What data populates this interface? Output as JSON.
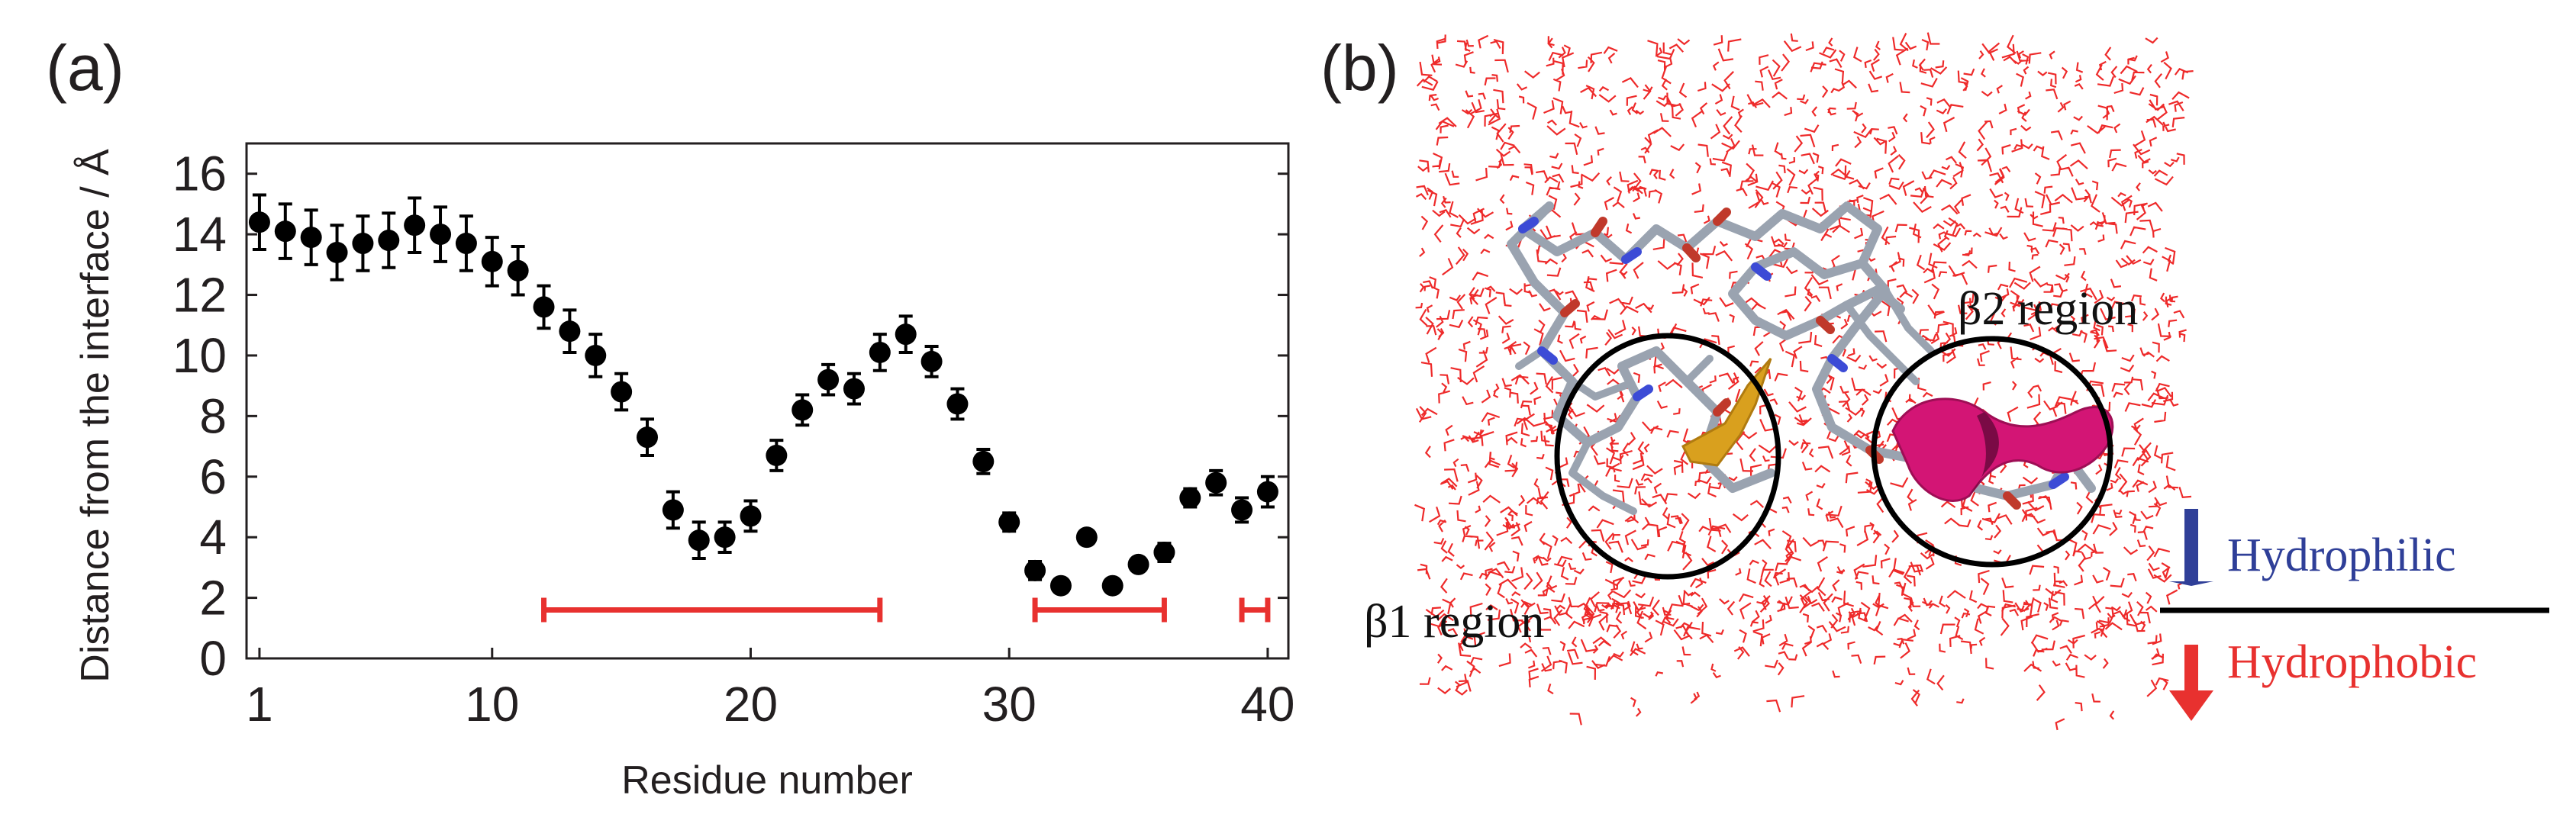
{
  "panel_a": {
    "label": "(a)",
    "chart_data": {
      "type": "scatter",
      "title": "",
      "xlabel": "Residue number",
      "ylabel": "Distance from the interface / Å",
      "xlim": [
        0.5,
        40.8
      ],
      "ylim": [
        0,
        17
      ],
      "x_ticks": [
        1,
        10,
        20,
        30,
        40
      ],
      "y_ticks": [
        0,
        2,
        4,
        6,
        8,
        10,
        12,
        14,
        16
      ],
      "grid": false,
      "series": [
        {
          "name": "Distance",
          "x": [
            1,
            2,
            3,
            4,
            5,
            6,
            7,
            8,
            9,
            10,
            11,
            12,
            13,
            14,
            15,
            16,
            17,
            18,
            19,
            20,
            21,
            22,
            23,
            24,
            25,
            26,
            27,
            28,
            29,
            30,
            31,
            32,
            33,
            34,
            35,
            36,
            37,
            38,
            39,
            40
          ],
          "y": [
            14.4,
            14.1,
            13.9,
            13.4,
            13.7,
            13.8,
            14.3,
            14.0,
            13.7,
            13.1,
            12.8,
            11.6,
            10.8,
            10.0,
            8.8,
            7.3,
            4.9,
            3.9,
            4.0,
            4.7,
            6.7,
            8.2,
            9.2,
            8.9,
            10.1,
            10.7,
            9.8,
            8.4,
            6.5,
            4.5,
            2.9,
            2.4,
            4.0,
            2.4,
            3.1,
            3.5,
            5.3,
            5.8,
            4.9,
            5.5
          ],
          "error": [
            0.9,
            0.9,
            0.9,
            0.9,
            0.9,
            0.9,
            0.9,
            0.9,
            0.9,
            0.8,
            0.8,
            0.7,
            0.7,
            0.7,
            0.6,
            0.6,
            0.6,
            0.6,
            0.5,
            0.5,
            0.5,
            0.5,
            0.5,
            0.5,
            0.6,
            0.6,
            0.5,
            0.5,
            0.4,
            0.3,
            0.3,
            0.2,
            0.2,
            0.2,
            0.2,
            0.3,
            0.3,
            0.4,
            0.4,
            0.5
          ],
          "color": "#000000"
        }
      ],
      "annotations": [
        {
          "type": "range_bar",
          "x_start": 12,
          "x_end": 25,
          "y": 1.6,
          "color": "#e8312f"
        },
        {
          "type": "range_bar",
          "x_start": 31,
          "x_end": 36,
          "y": 1.6,
          "color": "#e8312f"
        },
        {
          "type": "range_bar",
          "x_start": 39,
          "x_end": 40,
          "y": 1.6,
          "color": "#e8312f"
        }
      ]
    }
  },
  "panel_b": {
    "label": "(b)",
    "region_beta1": "β1 region",
    "region_beta2": "β2 region",
    "legend": {
      "hydrophilic": "Hydrophilic",
      "hydrophobic": "Hydrophobic",
      "up_color": "#2f3f98",
      "down_color": "#e8312f"
    },
    "water_color": "#ee2a2a"
  }
}
